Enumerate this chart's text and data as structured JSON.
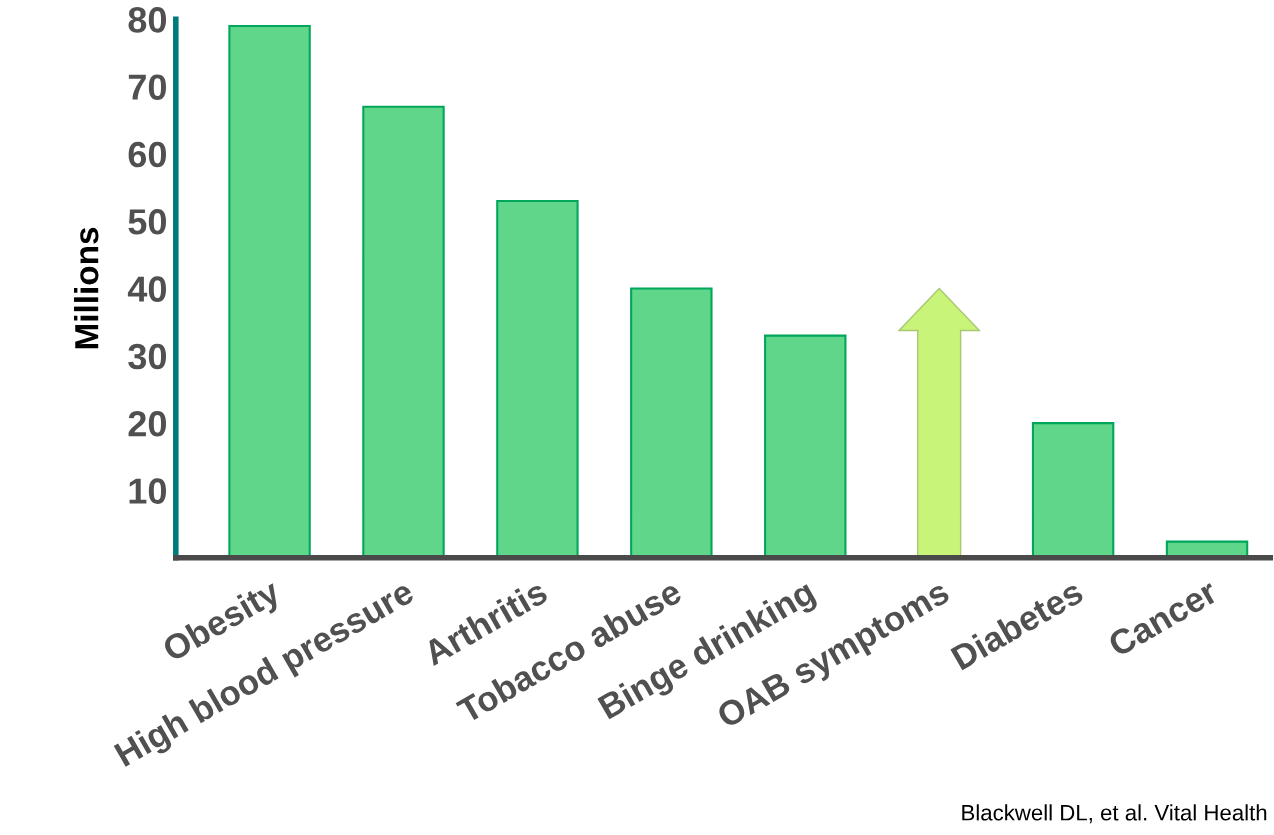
{
  "chart_data": {
    "type": "bar",
    "ylabel": "Millions",
    "categories": [
      "Obesity",
      "High blood pressure",
      "Arthritis",
      "Tobacco abuse",
      "Binge drinking",
      "OAB symptoms",
      "Diabetes",
      "Cancer"
    ],
    "values": [
      79,
      67,
      53,
      40,
      33,
      null,
      20,
      2.4
    ],
    "color": "#5fd68a",
    "ylim": [
      0,
      80
    ],
    "yticks": [
      10,
      20,
      30,
      40,
      50,
      60,
      70,
      80
    ],
    "grid": false,
    "annotations": [
      "Blackwell DL, et al. Vital Health"
    ]
  }
}
